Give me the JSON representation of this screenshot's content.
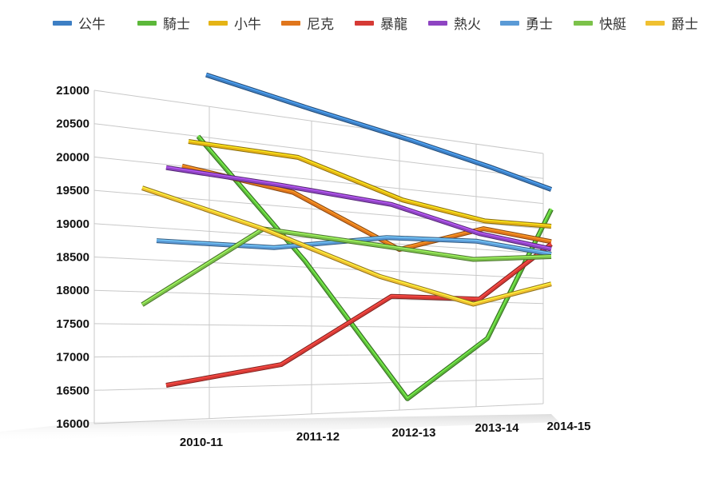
{
  "chart_data": {
    "type": "line",
    "title": "",
    "xlabel": "",
    "ylabel": "",
    "categories": [
      "2010-11",
      "2011-12",
      "2012-13",
      "2013-14",
      "2014-15"
    ],
    "ylim": [
      16000,
      21000
    ],
    "yticks": [
      16000,
      16500,
      17000,
      17500,
      18000,
      18500,
      19000,
      19500,
      20000,
      20500,
      21000
    ],
    "grid": true,
    "legend": "top",
    "series": [
      {
        "name": "公牛",
        "color": "#3d7fc4",
        "values": [
          21500,
          21200,
          20900,
          20600,
          20300
        ]
      },
      {
        "name": "騎士",
        "color": "#5cb83a",
        "values": [
          20500,
          18600,
          16200,
          17300,
          19900
        ]
      },
      {
        "name": "小牛",
        "color": "#e5b416",
        "values": [
          20400,
          20350,
          19800,
          19550,
          19560
        ]
      },
      {
        "name": "尼克",
        "color": "#e0761c",
        "values": [
          20000,
          19750,
          18900,
          19400,
          19250
        ]
      },
      {
        "name": "暴龍",
        "color": "#d63a35",
        "values": [
          16550,
          16850,
          18050,
          18050,
          19200
        ]
      },
      {
        "name": "熱火",
        "color": "#8e44c2",
        "values": [
          19950,
          19850,
          19700,
          19300,
          19100
        ]
      },
      {
        "name": "勇士",
        "color": "#5a9ad6",
        "values": [
          18800,
          18800,
          19100,
          19150,
          19000
        ]
      },
      {
        "name": "快艇",
        "color": "#7cc24a",
        "values": [
          17800,
          19100,
          18950,
          18800,
          18950
        ]
      },
      {
        "name": "爵士",
        "color": "#f0c030",
        "values": [
          19600,
          19100,
          18400,
          17950,
          18400
        ]
      }
    ]
  }
}
